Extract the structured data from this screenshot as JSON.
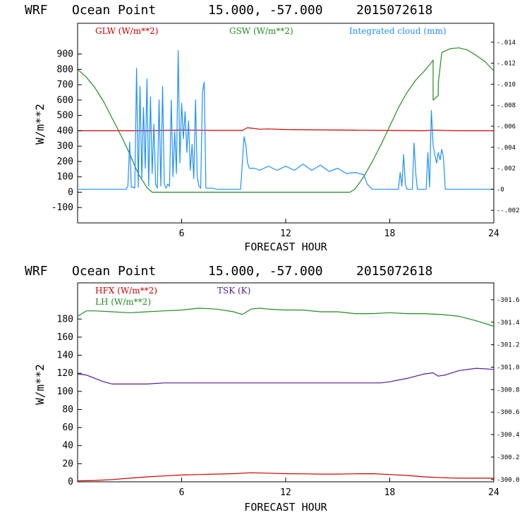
{
  "chart_data": [
    {
      "type": "line",
      "title": [
        "WRF",
        "Ocean Point",
        "15.000, -57.000",
        "2015072618"
      ],
      "xlabel": "FORECAST HOUR",
      "ylabel": "W/m**2",
      "xlim": [
        0,
        24
      ],
      "ylim": [
        -200,
        1100
      ],
      "xticks": [
        6,
        12,
        18,
        24
      ],
      "yticks": [
        -100,
        0,
        100,
        200,
        300,
        400,
        500,
        600,
        700,
        800,
        900
      ],
      "right_axis": {
        "ylim": [
          -0.0032,
          0.0158
        ],
        "ticks": [
          ".014",
          ".012",
          ".010",
          ".008",
          ".006",
          ".004",
          ".002",
          "0",
          "-.002"
        ],
        "tick_values": [
          0.014,
          0.012,
          0.01,
          0.008,
          0.006,
          0.004,
          0.002,
          0,
          -0.002
        ]
      },
      "series": [
        {
          "name": "GLW (W/m**2)",
          "color": "#cc0000",
          "x": [
            0,
            2,
            4,
            6,
            8,
            9.5,
            9.8,
            10.5,
            11,
            12,
            14,
            16,
            18,
            20,
            20.5,
            22,
            24
          ],
          "y": [
            400,
            400,
            400,
            405,
            402,
            402,
            420,
            410,
            412,
            408,
            406,
            404,
            402,
            400,
            404,
            400,
            400
          ]
        },
        {
          "name": "GSW (W/m**2)",
          "color": "#228b22",
          "x": [
            0,
            0.5,
            1,
            1.5,
            2,
            2.5,
            3,
            3.5,
            4,
            4.3,
            15.7,
            16,
            16.5,
            17,
            17.5,
            18,
            18.5,
            19,
            19.5,
            20,
            20.3,
            20.5,
            20.5,
            20.8,
            20.8,
            21,
            21.5,
            22,
            22.5,
            23,
            23.5,
            24
          ],
          "y": [
            800,
            750,
            680,
            590,
            480,
            370,
            250,
            120,
            30,
            0,
            0,
            20,
            100,
            200,
            310,
            430,
            550,
            650,
            730,
            790,
            830,
            860,
            600,
            630,
            710,
            910,
            935,
            940,
            925,
            890,
            850,
            790
          ]
        },
        {
          "name": "Integrated cloud (mm)",
          "color": "#1e90ff",
          "axis": "right",
          "x": [
            0,
            2.8,
            2.9,
            3.0,
            3.1,
            3.2,
            3.3,
            3.4,
            3.5,
            3.6,
            3.7,
            3.8,
            3.9,
            4.0,
            4.1,
            4.2,
            4.3,
            4.4,
            4.5,
            4.6,
            4.7,
            4.8,
            4.9,
            5.0,
            5.1,
            5.2,
            5.3,
            5.4,
            5.5,
            5.6,
            5.7,
            5.8,
            5.9,
            6.0,
            6.1,
            6.2,
            6.3,
            6.4,
            6.5,
            6.6,
            6.7,
            6.8,
            6.9,
            7.0,
            7.1,
            7.2,
            7.3,
            7.4,
            7.6,
            7.8,
            8.0,
            8.2,
            9.4,
            9.5,
            9.6,
            9.7,
            9.8,
            9.9,
            10.0,
            10.2,
            10.5,
            11,
            11.5,
            12,
            12.5,
            13,
            13.5,
            14,
            14.5,
            15,
            15.5,
            16,
            16.5,
            16.7,
            17,
            18.5,
            18.6,
            18.7,
            18.8,
            18.9,
            19.0,
            19.3,
            19.4,
            19.5,
            19.6,
            20.1,
            20.2,
            20.3,
            20.4,
            20.5,
            20.6,
            20.7,
            20.8,
            20.9,
            21.0,
            21.1,
            21.2,
            24
          ],
          "y": [
            0,
            0,
            0.0003,
            0.0045,
            0.0002,
            0.0002,
            0.0001,
            0.0115,
            0.0002,
            0.0098,
            0.001,
            0.0078,
            0.002,
            0.0105,
            0.0003,
            0.0088,
            0.0015,
            0.0062,
            0.0005,
            0.0001,
            0.0085,
            0.0003,
            0.0098,
            0.0005,
            0.0001,
            0.0005,
            0.0003,
            0.0085,
            0.0012,
            0.0055,
            0.0015,
            0.0132,
            0.0025,
            0.0082,
            0.0048,
            0.0074,
            0.0035,
            0.0065,
            0.0018,
            0.0043,
            0.001,
            0.0085,
            0.0012,
            0.0003,
            0.0001,
            0.0092,
            0.0102,
            0.0001,
            0.0001,
            0.0001,
            0,
            0,
            0,
            0.0025,
            0.005,
            0.0042,
            0.0025,
            0.002,
            0.002,
            0.002,
            0.0018,
            0.0022,
            0.0018,
            0.0022,
            0.0018,
            0.0024,
            0.0018,
            0.0023,
            0.0017,
            0.002,
            0.0015,
            0.0016,
            0.0014,
            0.0005,
            0,
            0,
            0.0016,
            0.0003,
            0.0033,
            0.0005,
            0,
            0,
            0.0044,
            0.0015,
            0,
            0,
            0.0035,
            0.0002,
            0.0075,
            0.0042,
            0.0033,
            0.0025,
            0.0035,
            0.0028,
            0.0038,
            0.003,
            0,
            0
          ]
        }
      ]
    },
    {
      "type": "line",
      "title": [
        "WRF",
        "Ocean Point",
        "15.000, -57.000",
        "2015072618"
      ],
      "xlabel": "FORECAST HOUR",
      "ylabel": "W/m**2",
      "xlim": [
        0,
        24
      ],
      "ylim": [
        0,
        220
      ],
      "xticks": [
        6,
        12,
        18,
        24
      ],
      "yticks": [
        0,
        20,
        40,
        60,
        80,
        100,
        120,
        140,
        160,
        180
      ],
      "right_axis": {
        "ylim": [
          299.98,
          301.75
        ],
        "ticks": [
          "301.6",
          "301.4",
          "301.2",
          "301.0",
          "300.8",
          "300.6",
          "300.4",
          "300.2",
          "300.0"
        ],
        "tick_values": [
          301.6,
          301.4,
          301.2,
          301.0,
          300.8,
          300.6,
          300.4,
          300.2,
          300.0
        ]
      },
      "series": [
        {
          "name": "HFX (W/m**2)",
          "color": "#cc0000",
          "x": [
            0,
            1,
            2,
            3,
            4,
            5,
            6,
            7,
            8,
            9,
            10,
            11,
            12,
            13,
            14,
            15,
            16,
            17,
            18,
            19,
            20,
            21,
            22,
            23,
            24
          ],
          "y": [
            1,
            1.5,
            2.5,
            4,
            5.5,
            6.5,
            7.5,
            8,
            8.5,
            9,
            10,
            9.5,
            9,
            8.8,
            8.5,
            8.5,
            8.8,
            9,
            8,
            7,
            5.5,
            4.5,
            4,
            4,
            4
          ]
        },
        {
          "name": "LH (W/m**2)",
          "color": "#228b22",
          "x": [
            0,
            0.5,
            1,
            2,
            3,
            4,
            5,
            6,
            7,
            8,
            9,
            9.5,
            10,
            10.5,
            11,
            12,
            13,
            14,
            15,
            16,
            17,
            18,
            19,
            20,
            21,
            22,
            23,
            24
          ],
          "y": [
            183,
            189,
            189,
            188,
            187,
            188,
            189,
            190,
            192,
            191,
            188,
            185,
            191,
            192,
            191,
            190,
            190,
            188,
            188,
            186,
            186,
            187,
            186,
            186,
            185,
            183,
            178,
            172
          ]
        },
        {
          "name": "TSK (K)",
          "color": "#551a8b",
          "axis": "right",
          "x": [
            0,
            0.5,
            1,
            1.5,
            2,
            3,
            4,
            5,
            6,
            7,
            8,
            9,
            10,
            11,
            12,
            13,
            14,
            15,
            16,
            17,
            17.5,
            18,
            19,
            20,
            20.5,
            20.8,
            21.2,
            22,
            23,
            24
          ],
          "y": [
            300.94,
            300.93,
            300.9,
            300.87,
            300.85,
            300.85,
            300.85,
            300.86,
            300.86,
            300.86,
            300.86,
            300.86,
            300.86,
            300.86,
            300.86,
            300.86,
            300.86,
            300.86,
            300.86,
            300.86,
            300.86,
            300.87,
            300.9,
            300.94,
            300.95,
            300.92,
            300.93,
            300.97,
            300.99,
            300.98
          ]
        }
      ]
    }
  ]
}
